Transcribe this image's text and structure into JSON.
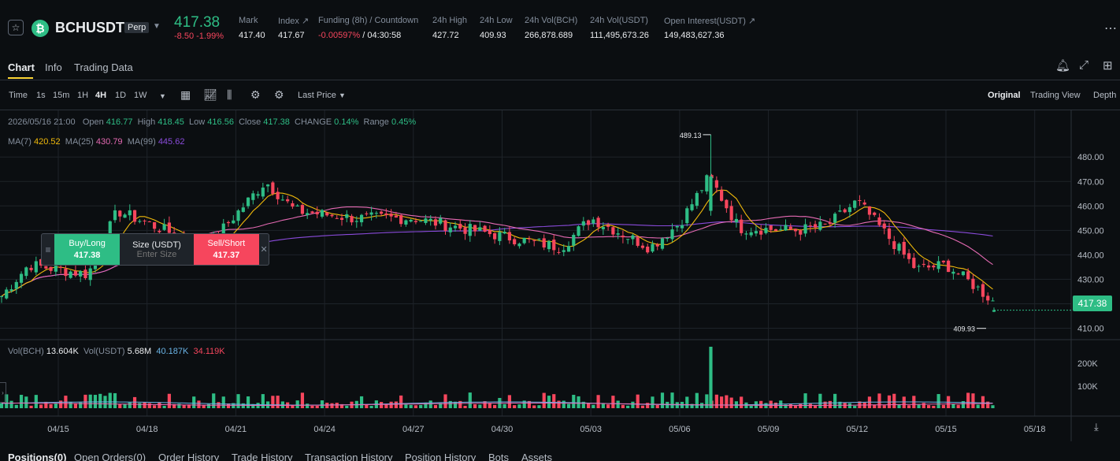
{
  "header": {
    "star_icon": "star-icon",
    "coin_icon": "bitcoin-cash-icon",
    "coin_glyph": "₿",
    "symbol": "BCHUSDT",
    "contract_type": "Perp",
    "last_price": "417.38",
    "change": "-8.50 -1.99%",
    "stats": [
      {
        "label": "Mark",
        "value": "417.40"
      },
      {
        "label": "Index ↗",
        "value": "417.67"
      },
      {
        "label": "Funding (8h) / Countdown",
        "value_red": "-0.00597%",
        "value_rest": " / 04:30:58"
      },
      {
        "label": "24h High",
        "value": "427.72"
      },
      {
        "label": "24h Low",
        "value": "409.93"
      },
      {
        "label": "24h Vol(BCH)",
        "value": "266,878.689"
      },
      {
        "label": "24h Vol(USDT)",
        "value": "111,495,673.26"
      },
      {
        "label": "Open Interest(USDT) ↗",
        "value": "149,483,627.36"
      }
    ]
  },
  "tabs": [
    "Chart",
    "Info",
    "Trading Data"
  ],
  "toolbar": {
    "time_label": "Time",
    "intervals": [
      "1s",
      "15m",
      "1H",
      "4H",
      "1D",
      "1W"
    ],
    "active_interval": "4H",
    "price_type": "Last Price",
    "views": [
      "Original",
      "Trading View",
      "Depth"
    ],
    "active_view": "Original"
  },
  "legend": {
    "ohlc": [
      {
        "k": "2026/05/16 21:00",
        "v": ""
      },
      {
        "k": "Open",
        "v": "416.77"
      },
      {
        "k": "High",
        "v": "418.45"
      },
      {
        "k": "Low",
        "v": "416.56"
      },
      {
        "k": "Close",
        "v": "417.38"
      },
      {
        "k": "CHANGE",
        "v": "0.14%"
      },
      {
        "k": "Range",
        "v": "0.45%"
      }
    ],
    "ma": [
      {
        "k": "MA(7)",
        "v": "420.52",
        "color": "#f0b90b"
      },
      {
        "k": "MA(25)",
        "v": "430.79",
        "color": "#e56ab3"
      },
      {
        "k": "MA(99)",
        "v": "445.62",
        "color": "#8a4bdb"
      }
    ],
    "vol": [
      {
        "k": "Vol(BCH)",
        "v": "13.604K",
        "color": "#eaecef"
      },
      {
        "k": "Vol(USDT)",
        "v": "5.68M",
        "color": "#eaecef"
      },
      {
        "k": "",
        "v": "40.187K",
        "color": "#6ab3e5"
      },
      {
        "k": "",
        "v": "34.119K",
        "color": "#f6465d"
      }
    ]
  },
  "order_widget": {
    "buy_label": "Buy/Long",
    "buy_price": "417.38",
    "size_label": "Size (USDT)",
    "size_placeholder": "Enter Size",
    "sell_label": "Sell/Short",
    "sell_price": "417.37"
  },
  "chart_data": {
    "type": "candlestick",
    "interval": "4H",
    "y_ticks": [
      480,
      470,
      460,
      450,
      440,
      430,
      420,
      410
    ],
    "y_tick_labels": [
      "480.00",
      "470.00",
      "460.00",
      "450.00",
      "440.00",
      "430.00",
      "",
      "410.00"
    ],
    "ylim": [
      405,
      492
    ],
    "volume_ticks": [
      "200K",
      "100K"
    ],
    "x_ticks": [
      "04/15",
      "04/18",
      "04/21",
      "04/24",
      "04/27",
      "04/30",
      "05/03",
      "05/06",
      "05/09",
      "05/12",
      "05/15",
      "05/18"
    ],
    "high_annotation": "489.13",
    "low_annotation": "409.93",
    "current_price": "417.38",
    "key_closes": [
      {
        "date": "04/13",
        "close": 422
      },
      {
        "date": "04/14",
        "close": 436
      },
      {
        "date": "04/16",
        "close": 432
      },
      {
        "date": "04/17",
        "close": 458
      },
      {
        "date": "04/19",
        "close": 448
      },
      {
        "date": "04/20",
        "close": 443
      },
      {
        "date": "04/22",
        "close": 470
      },
      {
        "date": "04/23",
        "close": 458
      },
      {
        "date": "04/25",
        "close": 455
      },
      {
        "date": "04/27",
        "close": 455
      },
      {
        "date": "04/29",
        "close": 450
      },
      {
        "date": "05/01",
        "close": 443
      },
      {
        "date": "05/02",
        "close": 455
      },
      {
        "date": "05/04",
        "close": 443
      },
      {
        "date": "05/05",
        "close": 453
      },
      {
        "date": "05/06",
        "close": 472
      },
      {
        "date": "05/07",
        "close": 451
      },
      {
        "date": "05/09",
        "close": 450
      },
      {
        "date": "05/10",
        "close": 452
      },
      {
        "date": "05/11",
        "close": 462
      },
      {
        "date": "05/12",
        "close": 448
      },
      {
        "date": "05/13",
        "close": 434
      },
      {
        "date": "05/14",
        "close": 436
      },
      {
        "date": "05/15",
        "close": 427
      },
      {
        "date": "05/16",
        "close": 417
      }
    ]
  },
  "bottom_tabs": [
    "Positions(0)",
    "Open Orders(0)",
    "Order History",
    "Trade History",
    "Transaction History",
    "Position History",
    "Bots",
    "Assets"
  ]
}
